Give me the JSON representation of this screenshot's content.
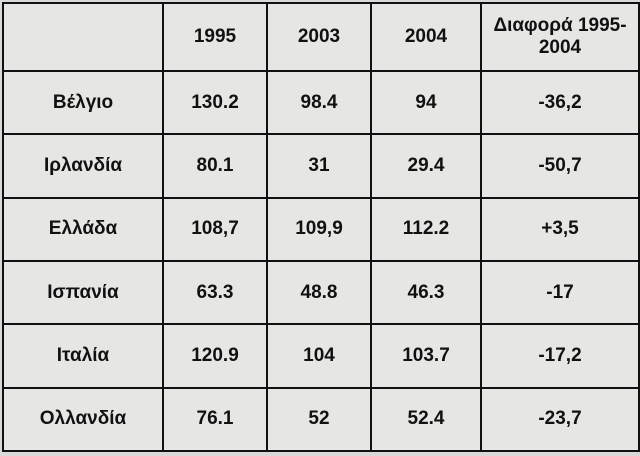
{
  "table": {
    "columns": [
      "1995",
      "2003",
      "2004",
      "Διαφορά 1995-2004"
    ],
    "rows": [
      [
        "Βέλγιο",
        "130.2",
        "98.4",
        "94",
        "-36,2"
      ],
      [
        "Ιρλανδία",
        "80.1",
        "31",
        "29.4",
        "-50,7"
      ],
      [
        "Ελλάδα",
        "108,7",
        "109,9",
        "112.2",
        "+3,5"
      ],
      [
        "Ισπανία",
        "63.3",
        "48.8",
        "46.3",
        "-17"
      ],
      [
        "Ιταλία",
        "120.9",
        "104",
        "103.7",
        "-17,2"
      ],
      [
        "Ολλανδία",
        "76.1",
        "52",
        "52.4",
        "-23,7"
      ]
    ]
  }
}
